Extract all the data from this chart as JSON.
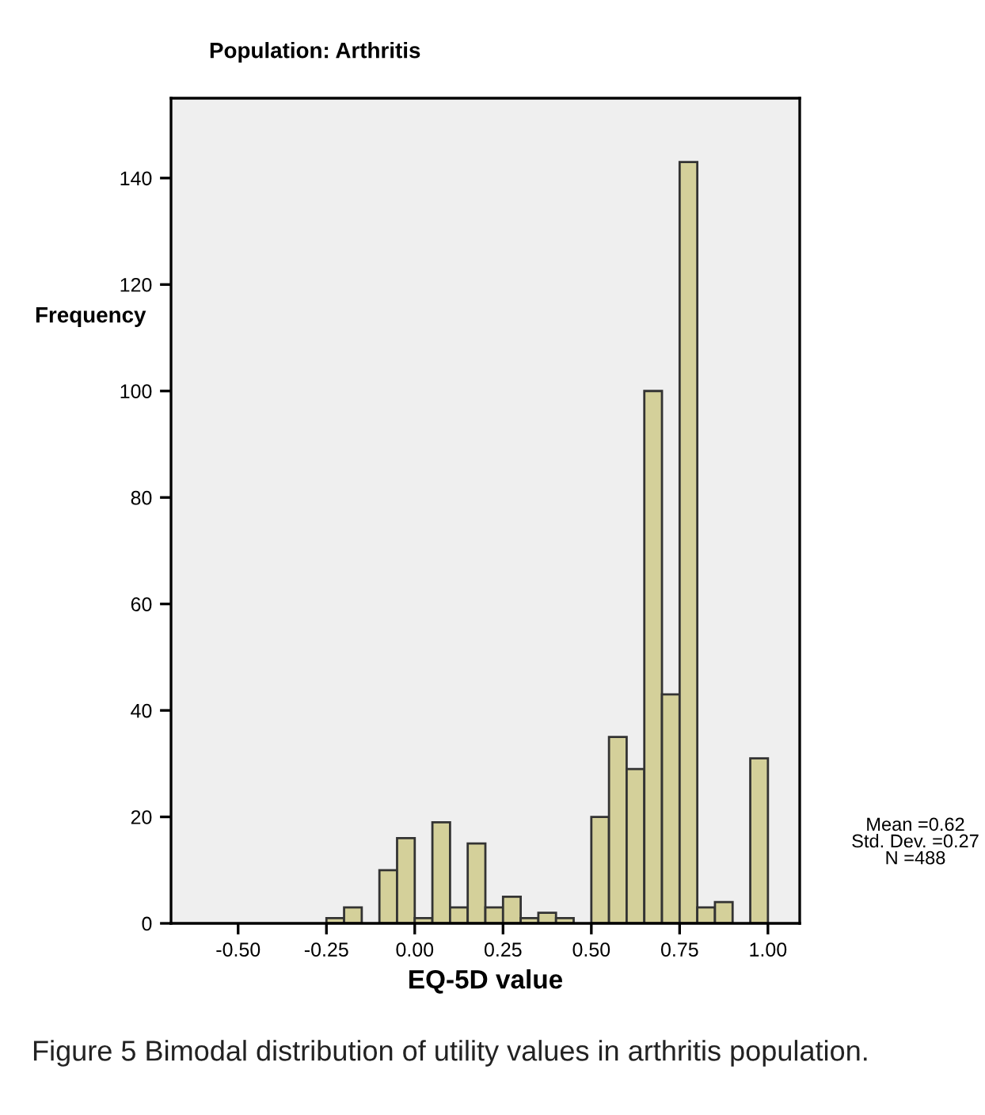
{
  "chart_data": {
    "type": "histogram",
    "title": "Population: Arthritis",
    "xlabel": "EQ-5D value",
    "ylabel": "Frequency",
    "bins": [
      -0.25,
      -0.2,
      -0.15,
      -0.1,
      -0.05,
      0.0,
      0.05,
      0.1,
      0.15,
      0.2,
      0.25,
      0.3,
      0.35,
      0.4,
      0.45,
      0.5,
      0.55,
      0.6,
      0.65,
      0.7,
      0.75,
      0.8,
      0.85,
      0.9,
      0.95,
      1.0
    ],
    "values": [
      1,
      3,
      0,
      10,
      16,
      1,
      19,
      3,
      15,
      3,
      5,
      1,
      2,
      1,
      0,
      20,
      35,
      29,
      100,
      43,
      143,
      3,
      4,
      0,
      31
    ],
    "color": "#d4d09a",
    "xlim": [
      -0.69,
      1.09
    ],
    "ylim": [
      0,
      155
    ],
    "xticks": [
      {
        "value": -0.5,
        "label": "-0.50"
      },
      {
        "value": -0.25,
        "label": "-0.25"
      },
      {
        "value": 0.0,
        "label": "0.00"
      },
      {
        "value": 0.25,
        "label": "0.25"
      },
      {
        "value": 0.5,
        "label": "0.50"
      },
      {
        "value": 0.75,
        "label": "0.75"
      },
      {
        "value": 1.0,
        "label": "1.00"
      }
    ],
    "yticks": [
      0,
      20,
      40,
      60,
      80,
      100,
      120,
      140
    ],
    "grid": false,
    "legend": false,
    "annotations": [
      "Mean =0.62\nStd. Dev. =0.27\nN =488",
      "Figure 5 Bimodal distribution of utility values in arthritis population."
    ]
  }
}
